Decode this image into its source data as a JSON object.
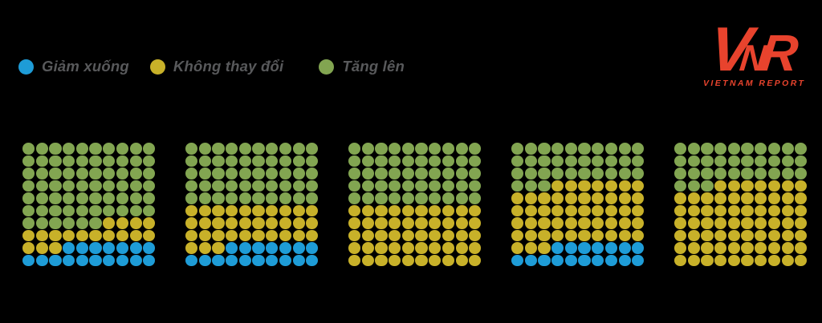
{
  "background_color": "#000000",
  "legend": {
    "text_color": "#58595B",
    "items": [
      {
        "key": "giam_xuong",
        "label": "Giảm xuống",
        "color": "#1E9CD7"
      },
      {
        "key": "khong_thay_doi",
        "label": "Không thay đổi",
        "color": "#C8B129"
      },
      {
        "key": "tang_len",
        "label": "Tăng lên",
        "color": "#82A551"
      }
    ]
  },
  "logo": {
    "letters": "VNR",
    "subtitle": "VIETNAM REPORT",
    "color": "#E8432D"
  },
  "chart_data": {
    "type": "waffle",
    "description": "Five 10x10 dot-matrix (waffle) charts; each dot = 1%. Cells fill row-major from top-left in order: Tăng lên (green), Không thay đổi (yellow), Giảm xuống (blue).",
    "grid": {
      "rows": 10,
      "cols": 10
    },
    "unit_percent": 1,
    "legend_position": "top-left",
    "fill_order": [
      "tang_len",
      "khong_thay_doi",
      "giam_xuong"
    ],
    "series_colors": {
      "tang_len": "#82A551",
      "khong_thay_doi": "#C8B129",
      "giam_xuong": "#1E9CD7"
    },
    "charts": [
      {
        "tang_len": 66,
        "khong_thay_doi": 17,
        "giam_xuong": 17
      },
      {
        "tang_len": 50,
        "khong_thay_doi": 33,
        "giam_xuong": 17
      },
      {
        "tang_len": 50,
        "khong_thay_doi": 50,
        "giam_xuong": 0
      },
      {
        "tang_len": 33,
        "khong_thay_doi": 50,
        "giam_xuong": 17
      },
      {
        "tang_len": 33,
        "khong_thay_doi": 67,
        "giam_xuong": 0
      }
    ]
  }
}
